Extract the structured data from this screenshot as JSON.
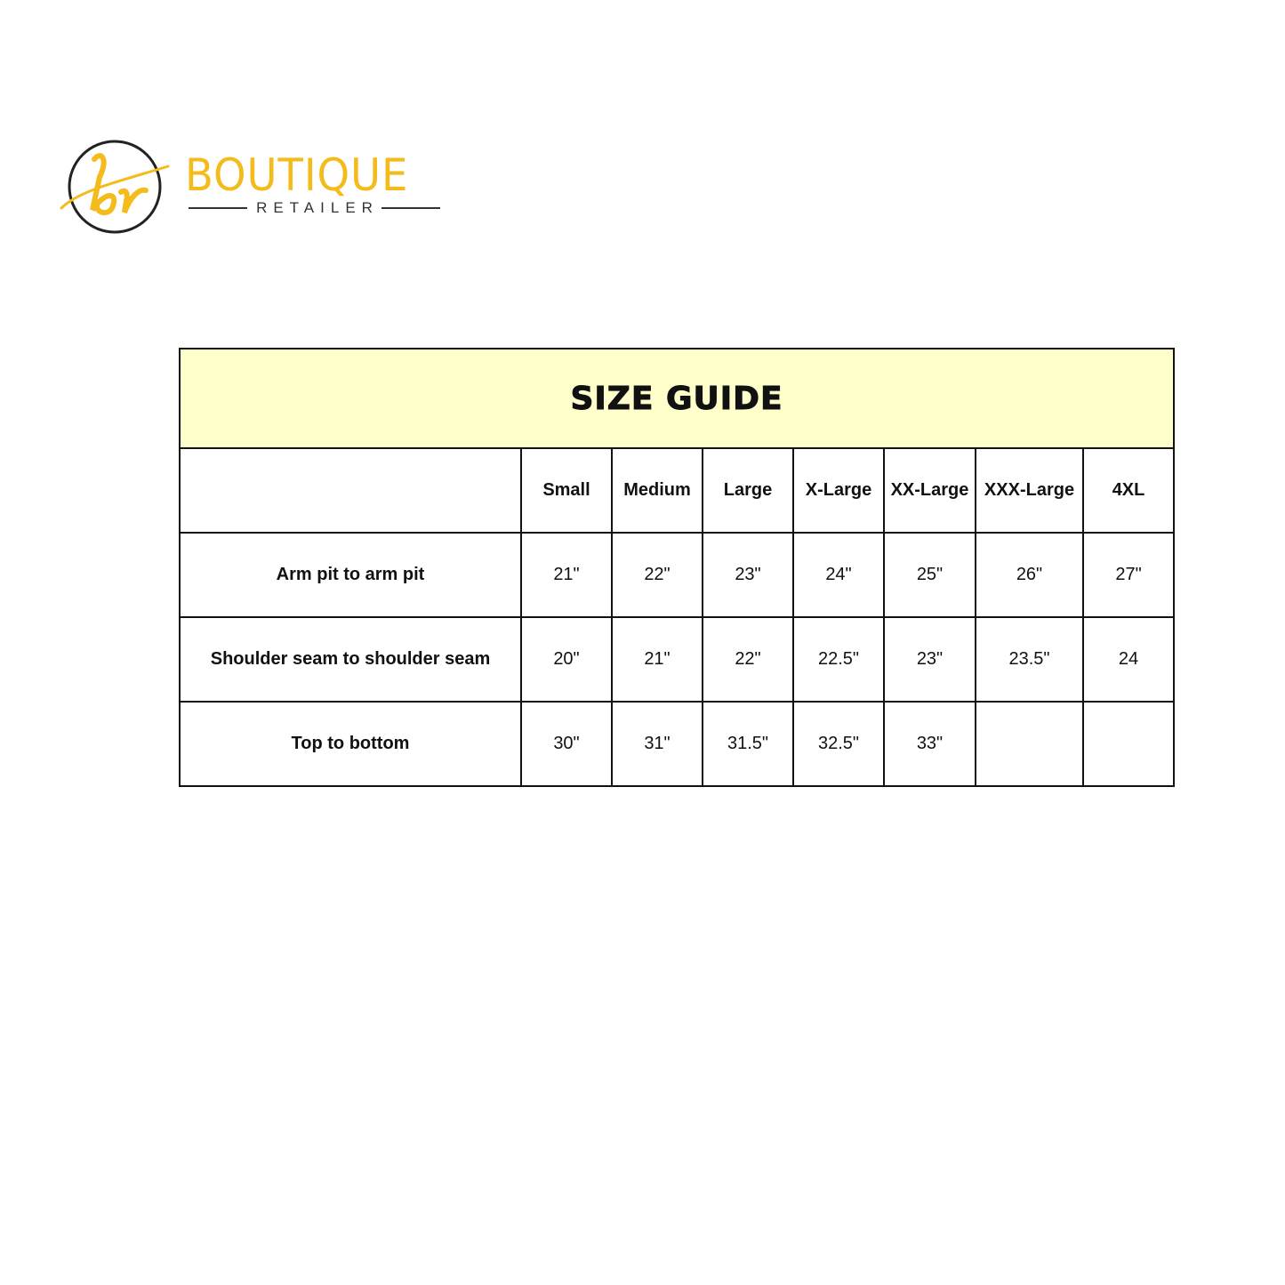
{
  "logo": {
    "monogram": "br",
    "brand": "BOUTIQUE",
    "subtitle": "RETAILER",
    "colors": {
      "accent": "#F4BB1C",
      "ring": "#222222"
    }
  },
  "table": {
    "title": "SIZE GUIDE",
    "title_bg": "#FFFFCC",
    "corner": "",
    "sizes": [
      "Small",
      "Medium",
      "Large",
      "X-Large",
      "XX-Large",
      "XXX-Large",
      "4XL"
    ],
    "rows": [
      {
        "label": "Arm pit to arm pit",
        "values": [
          "21\"",
          "22\"",
          "23\"",
          "24\"",
          "25\"",
          "26\"",
          "27\""
        ]
      },
      {
        "label": "Shoulder seam to shoulder seam",
        "values": [
          "20\"",
          "21\"",
          "22\"",
          "22.5\"",
          "23\"",
          "23.5\"",
          "24"
        ]
      },
      {
        "label": "Top to bottom",
        "values": [
          "30\"",
          "31\"",
          "31.5\"",
          "32.5\"",
          "33\"",
          "",
          ""
        ]
      }
    ]
  }
}
